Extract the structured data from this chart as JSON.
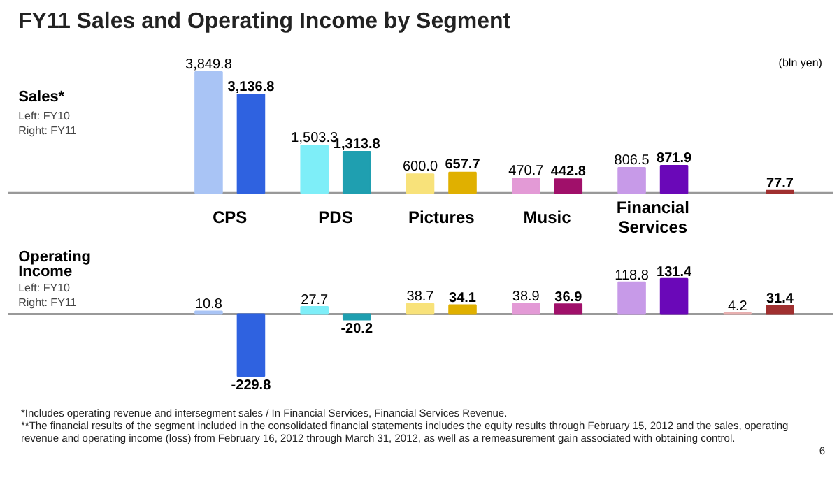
{
  "chart_data": [
    {
      "type": "bar",
      "title": "FY11  Sales and Operating Income by Segment",
      "ylabel": "Sales*",
      "categories": [
        "CPS",
        "PDS",
        "Pictures",
        "Music",
        "Financial\nServices",
        null
      ],
      "series": [
        {
          "colors": [
            "#a9c4f5",
            "#7eeef8",
            "#f8e27a",
            "#e39ad6",
            "#c79ae8",
            "#e8b0b0"
          ],
          "values": [
            3849.8,
            1503.3,
            600.0,
            470.7,
            806.5,
            null
          ],
          "value_labels": [
            "3,849.8",
            "1,503.3",
            "600.0",
            "470.7",
            "806.5",
            null
          ]
        },
        {
          "colors": [
            "#2f62e0",
            "#1f9fb0",
            "#e0b000",
            "#a0106a",
            "#6a08b8",
            "#a03030"
          ],
          "values": [
            3136.8,
            1313.8,
            657.7,
            442.8,
            871.9,
            77.7
          ],
          "value_labels": [
            "3,136.8",
            "1,313.8",
            "657.7",
            "442.8",
            "871.9",
            "77.7"
          ]
        }
      ],
      "tick_labels": "x",
      "annotations": [
        "(bln yen)",
        "Left:   FY10\nRight:  FY11"
      ]
    },
    {
      "type": "bar",
      "ylabel": "Operating\nIncome",
      "categories": [
        null,
        null,
        null,
        null,
        null,
        null
      ],
      "series": [
        {
          "colors": [
            "#a9c4f5",
            "#7eeef8",
            "#f8e27a",
            "#e39ad6",
            "#c79ae8",
            "#e8b0b0"
          ],
          "values": [
            10.8,
            27.7,
            38.7,
            38.9,
            118.8,
            4.2
          ]
        },
        {
          "colors": [
            "#2f62e0",
            "#1f9fb0",
            "#e0b000",
            "#a0106a",
            "#6a08b8",
            "#a03030"
          ],
          "values": [
            -229.8,
            -20.2,
            34.1,
            36.9,
            131.4,
            31.4
          ]
        }
      ],
      "data_labels": true,
      "tick_labels": false,
      "annotations": [
        "Left:   FY10\nRight:  FY11",
        "*Includes operating revenue and intersegment sales / In Financial Services, Financial Services Revenue.",
        "**The financial results of the segment included in the consolidated financial statements includes the equity results through February 15, 2012 and the sales, operating revenue and operating income (loss) from February 16, 2012 through March 31, 2012, as well as a remeasurement gain associated with obtaining control.",
        "6"
      ]
    }
  ]
}
